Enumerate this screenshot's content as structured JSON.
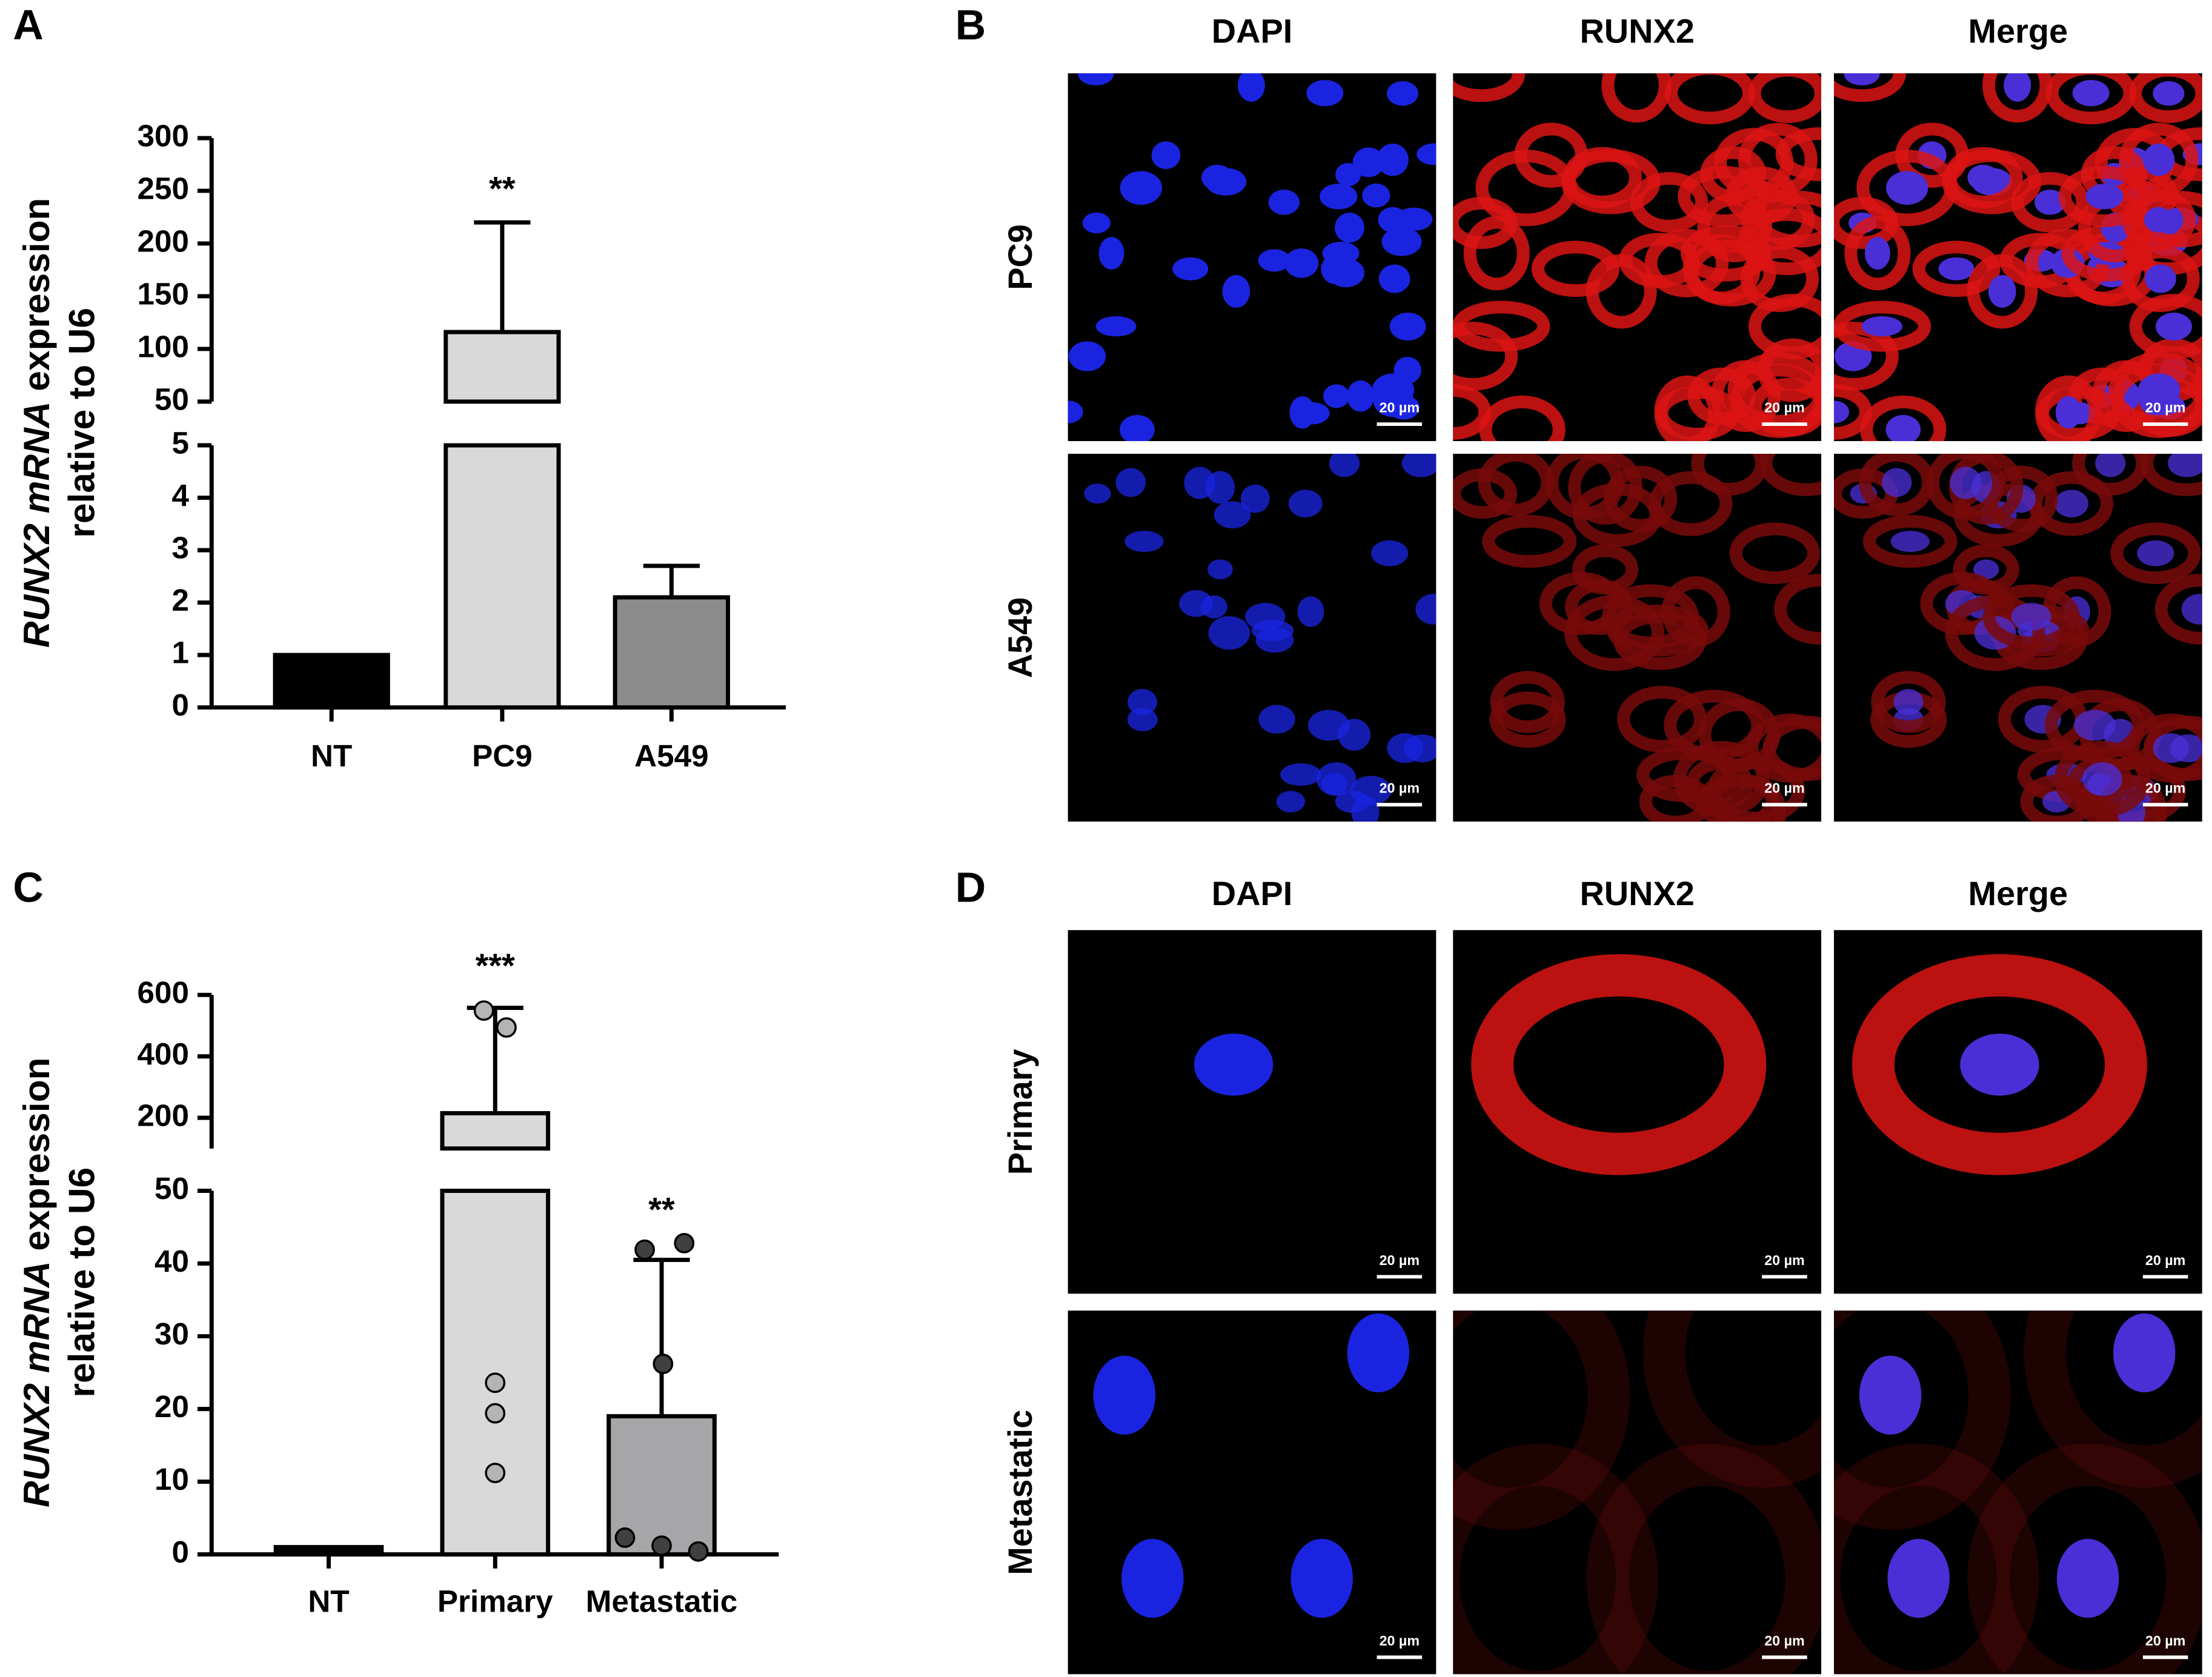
{
  "chart_data": [
    {
      "type": "bar",
      "panel_label": "A",
      "y_label": {
        "italic": "RUNX2 mRNA",
        "rest": "expression",
        "line2": "relative to U6"
      },
      "categories": [
        "NT",
        "PC9",
        "A549"
      ],
      "values": [
        1,
        116,
        2.1
      ],
      "errors": [
        null,
        104,
        0.6
      ],
      "colors": [
        "#000000",
        "#d9d9d9",
        "#8c8c8c"
      ],
      "significance": [
        null,
        "**",
        null
      ],
      "axis_segments": [
        {
          "ylim": [
            0,
            5
          ],
          "yticks": [
            0,
            1,
            2,
            3,
            4,
            5
          ]
        },
        {
          "ylim": [
            50,
            300
          ],
          "yticks": [
            50,
            100,
            150,
            200,
            250,
            300
          ]
        }
      ]
    },
    {
      "type": "bar",
      "panel_label": "C",
      "y_label": {
        "italic": "RUNX2 mRNA",
        "rest": "expression",
        "line2": "relative to U6"
      },
      "categories": [
        "NT",
        "Primary",
        "Metastatic"
      ],
      "values": [
        1,
        215,
        19
      ],
      "errors": [
        null,
        343,
        21.5
      ],
      "colors": [
        "#000000",
        "#d9d9d9",
        "#a6a6a8"
      ],
      "points": [
        [],
        [
          549,
          494,
          23.6,
          19.4,
          11.2
        ],
        [
          41.9,
          42.8,
          26.2,
          2.3,
          1.2,
          0.4
        ]
      ],
      "point_colors": [
        null,
        "#b4b4b4",
        "#404040"
      ],
      "significance": [
        null,
        "***",
        "**"
      ],
      "axis_segments": [
        {
          "ylim": [
            0,
            50
          ],
          "yticks": [
            0,
            10,
            20,
            30,
            40,
            50
          ]
        },
        {
          "ylim": [
            100,
            600
          ],
          "yticks": [
            200,
            400,
            600
          ]
        }
      ]
    }
  ],
  "micrographs": [
    {
      "panel_label": "B",
      "columns": [
        "DAPI",
        "RUNX2",
        "Merge"
      ],
      "rows": [
        "PC9",
        "A549"
      ],
      "scale_bar": "20 µm"
    },
    {
      "panel_label": "D",
      "columns": [
        "DAPI",
        "RUNX2",
        "Merge"
      ],
      "rows": [
        "Primary",
        "Metastatic"
      ],
      "scale_bar": "20 µm"
    }
  ]
}
